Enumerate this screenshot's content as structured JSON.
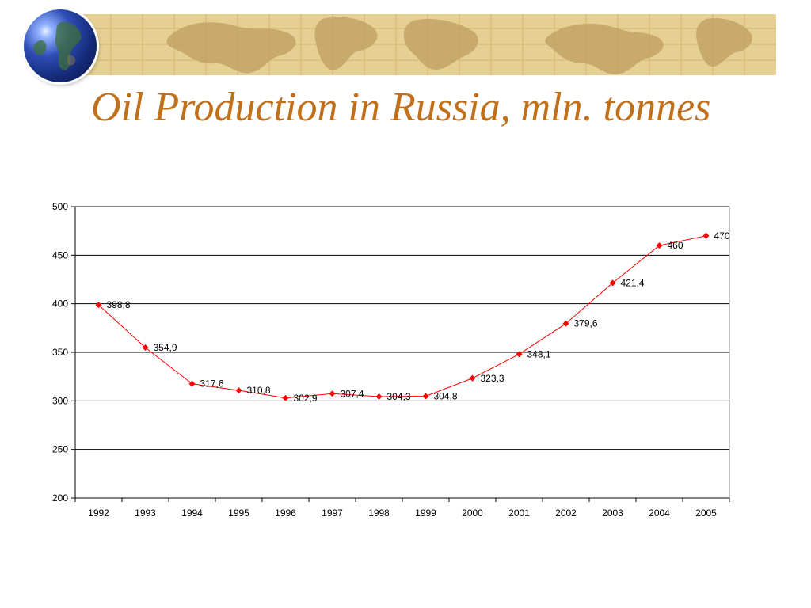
{
  "slide": {
    "title": "Oil Production in Russia, mln. tonnes"
  },
  "decor": {
    "globe_icon": "globe-icon",
    "banner_icon": "world-map-banner",
    "colors": {
      "title": "#c0701a",
      "banner": "#e6cf93",
      "series": "#ff0000"
    }
  },
  "chart_data": {
    "type": "line",
    "title": "",
    "xlabel": "",
    "ylabel": "",
    "categories": [
      "1992",
      "1993",
      "1994",
      "1995",
      "1996",
      "1997",
      "1998",
      "1999",
      "2000",
      "2001",
      "2002",
      "2003",
      "2004",
      "2005"
    ],
    "series": [
      {
        "values": [
          398.8,
          354.9,
          317.6,
          310.8,
          302.9,
          307.4,
          304.3,
          304.8,
          323.3,
          348.1,
          379.6,
          421.4,
          460,
          470
        ],
        "labels": [
          "398,8",
          "354,9",
          "317,6",
          "310,8",
          "302,9",
          "307,4",
          "304,3",
          "304,8",
          "323,3",
          "348,1",
          "379,6",
          "421,4",
          "460",
          "470"
        ],
        "color": "#ff0000",
        "marker": "diamond"
      }
    ],
    "ylim": [
      200,
      500
    ],
    "yticks": [
      "200",
      "250",
      "300",
      "350",
      "400",
      "450",
      "500"
    ],
    "grid": true,
    "legend": "none"
  }
}
